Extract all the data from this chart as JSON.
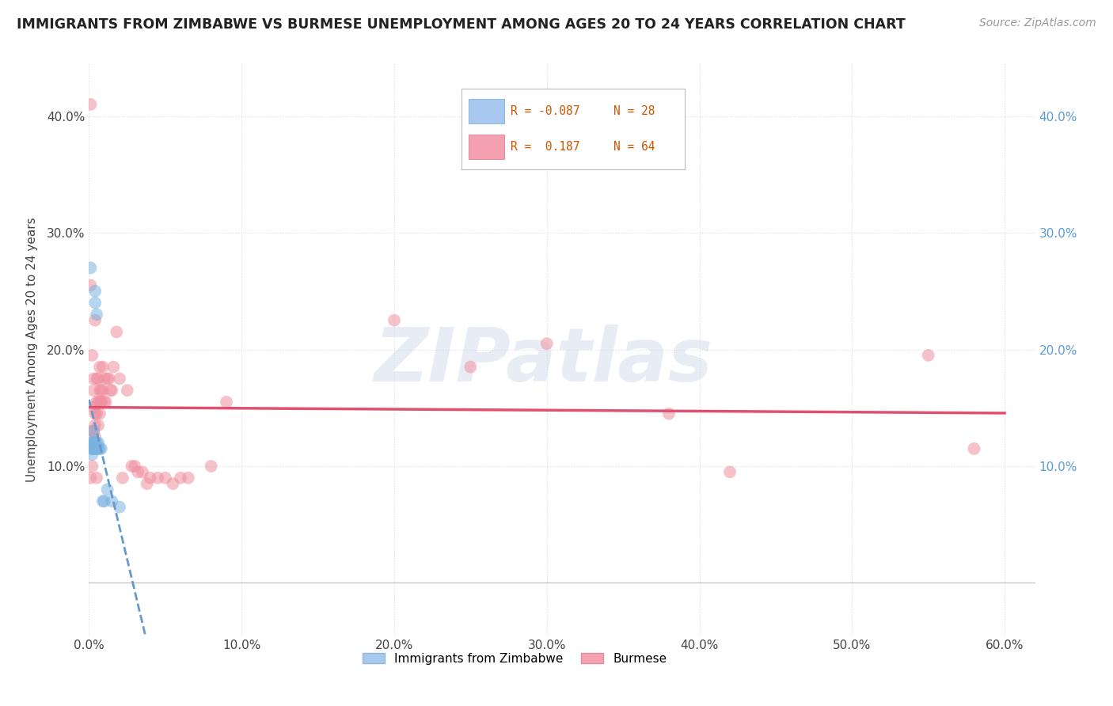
{
  "title": "IMMIGRANTS FROM ZIMBABWE VS BURMESE UNEMPLOYMENT AMONG AGES 20 TO 24 YEARS CORRELATION CHART",
  "source": "Source: ZipAtlas.com",
  "ylabel": "Unemployment Among Ages 20 to 24 years",
  "xlim": [
    0.0,
    0.62
  ],
  "ylim": [
    -0.045,
    0.445
  ],
  "x_ticks": [
    0.0,
    0.1,
    0.2,
    0.3,
    0.4,
    0.5,
    0.6
  ],
  "x_tick_labels": [
    "0.0%",
    "10.0%",
    "20.0%",
    "30.0%",
    "40.0%",
    "50.0%",
    "60.0%"
  ],
  "y_ticks": [
    0.0,
    0.1,
    0.2,
    0.3,
    0.4
  ],
  "y_tick_labels": [
    "",
    "10.0%",
    "20.0%",
    "30.0%",
    "40.0%"
  ],
  "right_y_tick_labels": [
    "10.0%",
    "20.0%",
    "30.0%",
    "40.0%"
  ],
  "right_y_ticks": [
    0.1,
    0.2,
    0.3,
    0.4
  ],
  "watermark_text": "ZIPatlas",
  "background_color": "#ffffff",
  "grid_color": "#dddddd",
  "blue_color": "#7ab3e0",
  "pink_color": "#f090a0",
  "blue_line_color": "#6699cc",
  "pink_line_color": "#e05070",
  "legend_R1": "R = -0.087",
  "legend_N1": "N = 28",
  "legend_R2": "R =  0.187",
  "legend_N2": "N = 64",
  "legend_label1": "Immigrants from Zimbabwe",
  "legend_label2": "Burmese",
  "blue_scatter_x": [
    0.001,
    0.001,
    0.001,
    0.002,
    0.002,
    0.002,
    0.002,
    0.003,
    0.003,
    0.003,
    0.003,
    0.003,
    0.004,
    0.004,
    0.004,
    0.004,
    0.005,
    0.005,
    0.005,
    0.006,
    0.006,
    0.007,
    0.008,
    0.009,
    0.01,
    0.012,
    0.015,
    0.02
  ],
  "blue_scatter_y": [
    0.27,
    0.12,
    0.115,
    0.115,
    0.12,
    0.115,
    0.11,
    0.115,
    0.12,
    0.12,
    0.13,
    0.115,
    0.115,
    0.12,
    0.25,
    0.24,
    0.23,
    0.115,
    0.12,
    0.115,
    0.12,
    0.115,
    0.115,
    0.07,
    0.07,
    0.08,
    0.07,
    0.065
  ],
  "pink_scatter_x": [
    0.001,
    0.001,
    0.002,
    0.002,
    0.002,
    0.003,
    0.003,
    0.003,
    0.003,
    0.004,
    0.004,
    0.004,
    0.004,
    0.005,
    0.005,
    0.005,
    0.006,
    0.006,
    0.006,
    0.007,
    0.007,
    0.007,
    0.008,
    0.008,
    0.008,
    0.009,
    0.009,
    0.01,
    0.01,
    0.011,
    0.012,
    0.013,
    0.014,
    0.015,
    0.016,
    0.018,
    0.02,
    0.022,
    0.025,
    0.028,
    0.03,
    0.032,
    0.035,
    0.038,
    0.04,
    0.045,
    0.05,
    0.055,
    0.06,
    0.065,
    0.08,
    0.09,
    0.2,
    0.25,
    0.3,
    0.38,
    0.42,
    0.55,
    0.58,
    0.001,
    0.002,
    0.003,
    0.005,
    0.007
  ],
  "pink_scatter_y": [
    0.41,
    0.255,
    0.12,
    0.13,
    0.195,
    0.12,
    0.13,
    0.15,
    0.165,
    0.125,
    0.135,
    0.145,
    0.225,
    0.145,
    0.155,
    0.175,
    0.135,
    0.155,
    0.175,
    0.145,
    0.155,
    0.165,
    0.155,
    0.155,
    0.165,
    0.165,
    0.185,
    0.155,
    0.175,
    0.155,
    0.175,
    0.175,
    0.165,
    0.165,
    0.185,
    0.215,
    0.175,
    0.09,
    0.165,
    0.1,
    0.1,
    0.095,
    0.095,
    0.085,
    0.09,
    0.09,
    0.09,
    0.085,
    0.09,
    0.09,
    0.1,
    0.155,
    0.225,
    0.185,
    0.205,
    0.145,
    0.095,
    0.195,
    0.115,
    0.09,
    0.1,
    0.175,
    0.09,
    0.185
  ]
}
